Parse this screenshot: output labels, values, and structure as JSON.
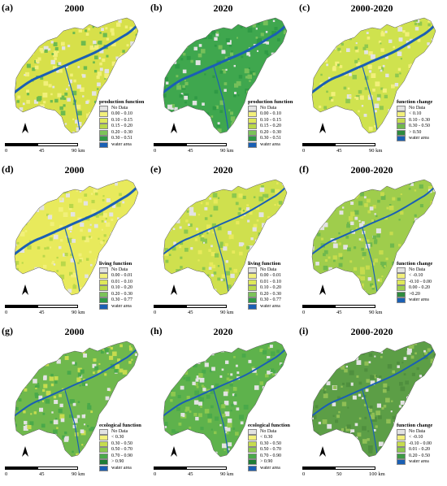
{
  "panels": [
    {
      "label": "(a)",
      "title": "2000",
      "legend_title": "production function",
      "legend": [
        [
          "No Data",
          "#e3e3e3"
        ],
        [
          "0.00 - 0.10",
          "#f2f07a"
        ],
        [
          "0.10 - 0.15",
          "#dfe85a"
        ],
        [
          "0.15 - 0.20",
          "#b9d84a"
        ],
        [
          "0.20 - 0.30",
          "#7cc35a"
        ],
        [
          "0.30 - 0.51",
          "#2f9a45"
        ],
        [
          "water area",
          "#1a5fb4"
        ]
      ],
      "scale_ticks": [
        "0",
        "45",
        "90 km"
      ]
    },
    {
      "label": "(b)",
      "title": "2020",
      "legend_title": "production function",
      "legend": [
        [
          "No Data",
          "#e3e3e3"
        ],
        [
          "0.00 - 0.10",
          "#f2f07a"
        ],
        [
          "0.10 - 0.15",
          "#dfe85a"
        ],
        [
          "0.15 - 0.20",
          "#b9d84a"
        ],
        [
          "0.20 - 0.30",
          "#7cc35a"
        ],
        [
          "0.30 - 0.51",
          "#2f9a45"
        ],
        [
          "water area",
          "#1a5fb4"
        ]
      ],
      "scale_ticks": [
        "0",
        "45",
        "90 km"
      ]
    },
    {
      "label": "(c)",
      "title": "2000-2020",
      "legend_title": "function change",
      "legend": [
        [
          "No Data",
          "#e3e3e3"
        ],
        [
          "< 0.10",
          "#f2f07a"
        ],
        [
          "0.10 - 0.30",
          "#c6dc4e"
        ],
        [
          "0.30 - 0.50",
          "#6fb84d"
        ],
        [
          "> 0.50",
          "#2e8b3e"
        ],
        [
          "water area",
          "#1a5fb4"
        ]
      ],
      "scale_ticks": [
        "0",
        "45",
        "90 km"
      ]
    },
    {
      "label": "(d)",
      "title": "2000",
      "legend_title": "living function",
      "legend": [
        [
          "No Data",
          "#e3e3e3"
        ],
        [
          "0.00 - 0.01",
          "#f2f07a"
        ],
        [
          "0.01 - 0.10",
          "#dfe85a"
        ],
        [
          "0.10 - 0.20",
          "#b9d84a"
        ],
        [
          "0.20 - 0.30",
          "#7cc35a"
        ],
        [
          "0.30 - 0.77",
          "#2f9a45"
        ],
        [
          "water area",
          "#1a5fb4"
        ]
      ],
      "scale_ticks": [
        "0",
        "45",
        "90 km"
      ]
    },
    {
      "label": "(e)",
      "title": "2020",
      "legend_title": "living function",
      "legend": [
        [
          "No Data",
          "#e3e3e3"
        ],
        [
          "0.00 - 0.01",
          "#f2f07a"
        ],
        [
          "0.01 - 0.10",
          "#dfe85a"
        ],
        [
          "0.10 - 0.20",
          "#b9d84a"
        ],
        [
          "0.20 - 0.30",
          "#7cc35a"
        ],
        [
          "0.30 - 0.77",
          "#2f9a45"
        ],
        [
          "water area",
          "#1a5fb4"
        ]
      ],
      "scale_ticks": [
        "0",
        "45",
        "90 km"
      ]
    },
    {
      "label": "(f)",
      "title": "2000-2020",
      "legend_title": "function change",
      "legend": [
        [
          "No Data",
          "#e3e3e3"
        ],
        [
          "< -0.10",
          "#f2f07a"
        ],
        [
          "-0.10 - 0.00",
          "#dfe85a"
        ],
        [
          "0.00 - 0.20",
          "#9fcd4c"
        ],
        [
          ">0.20",
          "#2e8b3e"
        ],
        [
          "water area",
          "#1a5fb4"
        ]
      ],
      "scale_ticks": [
        "0",
        "45",
        "90 km"
      ]
    },
    {
      "label": "(g)",
      "title": "2000",
      "legend_title": "ecological function",
      "legend": [
        [
          "No Data",
          "#e3e3e3"
        ],
        [
          "< 0.30",
          "#f2f07a"
        ],
        [
          "0.30 - 0.50",
          "#c6dc4e"
        ],
        [
          "0.50 - 0.70",
          "#8cc84e"
        ],
        [
          "0.70 - 0.90",
          "#4aa94a"
        ],
        [
          "> 0.90",
          "#1f7d36"
        ],
        [
          "water area",
          "#1a5fb4"
        ]
      ],
      "scale_ticks": [
        "0",
        "45",
        "90 km"
      ]
    },
    {
      "label": "(h)",
      "title": "2020",
      "legend_title": "ecological function",
      "legend": [
        [
          "No Data",
          "#e3e3e3"
        ],
        [
          "< 0.30",
          "#f2f07a"
        ],
        [
          "0.30 - 0.50",
          "#c6dc4e"
        ],
        [
          "0.50 - 0.70",
          "#8cc84e"
        ],
        [
          "0.70 - 0.90",
          "#4aa94a"
        ],
        [
          "> 0.90",
          "#1f7d36"
        ],
        [
          "water area",
          "#1a5fb4"
        ]
      ],
      "scale_ticks": [
        "0",
        "45",
        "90 km"
      ]
    },
    {
      "label": "(i)",
      "title": "2000-2020",
      "legend_title": "function change",
      "legend": [
        [
          "No Data",
          "#e3e3e3"
        ],
        [
          "< -0.10",
          "#f2f07a"
        ],
        [
          "-0.10 - 0.00",
          "#c6dc4e"
        ],
        [
          "0.01 - 0.20",
          "#8cc84e"
        ],
        [
          "0.20 - 0.50",
          "#3d9a45"
        ],
        [
          "water area",
          "#1a5fb4"
        ]
      ],
      "scale_ticks": [
        "0",
        "50",
        "100 km"
      ]
    }
  ],
  "map_fill": {
    "a": {
      "base": "#d7e04a",
      "accent": "#f2f07a",
      "green": "#6dbb4f"
    },
    "b": {
      "base": "#3fa74e",
      "accent": "#2f9a45",
      "green": "#76c05a"
    },
    "c": {
      "base": "#cfe24e",
      "accent": "#f2f07a",
      "green": "#8fc84e"
    },
    "d": {
      "base": "#e8ea5c",
      "accent": "#f2f07a",
      "green": "#b9d84a"
    },
    "e": {
      "base": "#cfe04e",
      "accent": "#e8ea5c",
      "green": "#8cc84e"
    },
    "f": {
      "base": "#9fcd4c",
      "accent": "#6fb84d",
      "green": "#c6dc4e"
    },
    "g": {
      "base": "#6fb84d",
      "accent": "#4aa94a",
      "green": "#c6dc4e"
    },
    "h": {
      "base": "#5eb24c",
      "accent": "#4aa94a",
      "green": "#8cc84e"
    },
    "i": {
      "base": "#5c9e46",
      "accent": "#4f8f3e",
      "green": "#8fbf55"
    }
  }
}
